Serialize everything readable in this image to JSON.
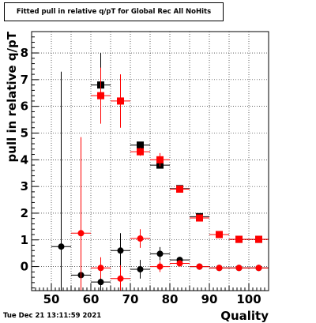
{
  "header": {
    "title": "Fitted pull in relative q/pT for Global Rec All NoHits"
  },
  "footer": {
    "timestamp": "Tue Dec 21 13:11:59 2021"
  },
  "chart_data": {
    "type": "scatter",
    "title": "Fitted pull in relative q/pT for Global Rec All NoHits",
    "xlabel": "Quality",
    "ylabel": "pull in relative q/pT",
    "xlim": [
      45,
      105
    ],
    "ylim": [
      -0.9,
      8.8
    ],
    "xticks": [
      50,
      60,
      70,
      80,
      90,
      100
    ],
    "yticks": [
      0,
      1,
      2,
      3,
      4,
      5,
      6,
      7,
      8
    ],
    "grid": true,
    "series": [
      {
        "color": "#000000",
        "marker": "square",
        "points": [
          {
            "x": 62.5,
            "y": 6.8,
            "yerr": 1.2
          },
          {
            "x": 72.5,
            "y": 4.55,
            "yerr": 0.12
          },
          {
            "x": 77.5,
            "y": 3.8,
            "yerr": 0.12
          },
          {
            "x": 82.5,
            "y": 2.92,
            "yerr": 0.08
          },
          {
            "x": 87.5,
            "y": 1.87,
            "yerr": 0.08
          },
          {
            "x": 92.5,
            "y": 1.2,
            "yerr": 0.06
          },
          {
            "x": 97.5,
            "y": 1.02,
            "yerr": 0.05
          },
          {
            "x": 102.5,
            "y": 1.02,
            "yerr": 0.05
          }
        ]
      },
      {
        "color": "#ff0000",
        "marker": "square",
        "points": [
          {
            "x": 62.5,
            "y": 6.4,
            "yerr": 1.05
          },
          {
            "x": 67.5,
            "y": 6.2,
            "yerr": 1.0
          },
          {
            "x": 72.5,
            "y": 4.3,
            "yerr": 0.15
          },
          {
            "x": 77.5,
            "y": 4.0,
            "yerr": 0.25
          },
          {
            "x": 82.5,
            "y": 2.9,
            "yerr": 0.08
          },
          {
            "x": 87.5,
            "y": 1.82,
            "yerr": 0.08
          },
          {
            "x": 92.5,
            "y": 1.2,
            "yerr": 0.06
          },
          {
            "x": 97.5,
            "y": 1.02,
            "yerr": 0.05
          },
          {
            "x": 102.5,
            "y": 1.02,
            "yerr": 0.05
          }
        ]
      },
      {
        "color": "#000000",
        "marker": "circle",
        "points": [
          {
            "x": 52.5,
            "y": 0.75,
            "yerr": 6.55
          },
          {
            "x": 57.5,
            "y": -0.32,
            "yerr": 0.25
          },
          {
            "x": 62.5,
            "y": -0.58,
            "yerr": 0.35
          },
          {
            "x": 67.5,
            "y": 0.6,
            "yerr": 0.65
          },
          {
            "x": 72.5,
            "y": -0.1,
            "yerr": 0.35
          },
          {
            "x": 77.5,
            "y": 0.48,
            "yerr": 0.25
          },
          {
            "x": 82.5,
            "y": 0.25,
            "yerr": 0.1
          },
          {
            "x": 87.5,
            "y": 0.0,
            "yerr": 0.05
          },
          {
            "x": 92.5,
            "y": -0.05,
            "yerr": 0.05
          },
          {
            "x": 97.5,
            "y": -0.05,
            "yerr": 0.04
          },
          {
            "x": 102.5,
            "y": -0.05,
            "yerr": 0.04
          }
        ]
      },
      {
        "color": "#ff0000",
        "marker": "circle",
        "points": [
          {
            "x": 57.5,
            "y": 1.25,
            "yerr": 3.6
          },
          {
            "x": 62.5,
            "y": -0.05,
            "yerr": 0.4
          },
          {
            "x": 67.5,
            "y": -0.45,
            "yerr": 0.5
          },
          {
            "x": 72.5,
            "y": 1.05,
            "yerr": 0.35
          },
          {
            "x": 77.5,
            "y": 0.0,
            "yerr": 0.2
          },
          {
            "x": 82.5,
            "y": 0.12,
            "yerr": 0.08
          },
          {
            "x": 87.5,
            "y": 0.0,
            "yerr": 0.05
          },
          {
            "x": 92.5,
            "y": -0.05,
            "yerr": 0.04
          },
          {
            "x": 97.5,
            "y": -0.05,
            "yerr": 0.04
          },
          {
            "x": 102.5,
            "y": -0.05,
            "yerr": 0.04
          }
        ]
      }
    ],
    "xbin_halfwidth": 2.5
  }
}
